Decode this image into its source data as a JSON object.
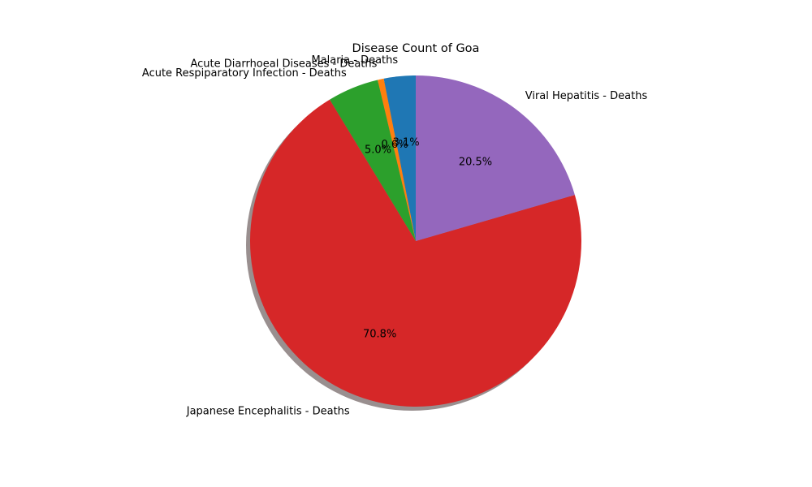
{
  "chart_data": {
    "type": "pie",
    "title": "Disease Count of Goa",
    "slices": [
      {
        "label": "Malaria - Deaths",
        "pct_label": "3.1%",
        "value": 3.1,
        "color": "#1f77b4"
      },
      {
        "label": "Acute Diarrhoeal Diseases - Deaths",
        "pct_label": "0.6%",
        "value": 0.6,
        "color": "#ff7f0e"
      },
      {
        "label": "Acute Respiparatory Infection - Deaths",
        "pct_label": "5.0%",
        "value": 5.0,
        "color": "#2ca02c"
      },
      {
        "label": "Japanese Encephalitis - Deaths",
        "pct_label": "70.8%",
        "value": 70.8,
        "color": "#d62728"
      },
      {
        "label": "Viral Hepatitis - Deaths",
        "pct_label": "20.5%",
        "value": 20.5,
        "color": "#9467bd"
      }
    ],
    "start_angle_deg": 90,
    "direction": "counterclockwise",
    "shadow": true,
    "legend": "none"
  }
}
